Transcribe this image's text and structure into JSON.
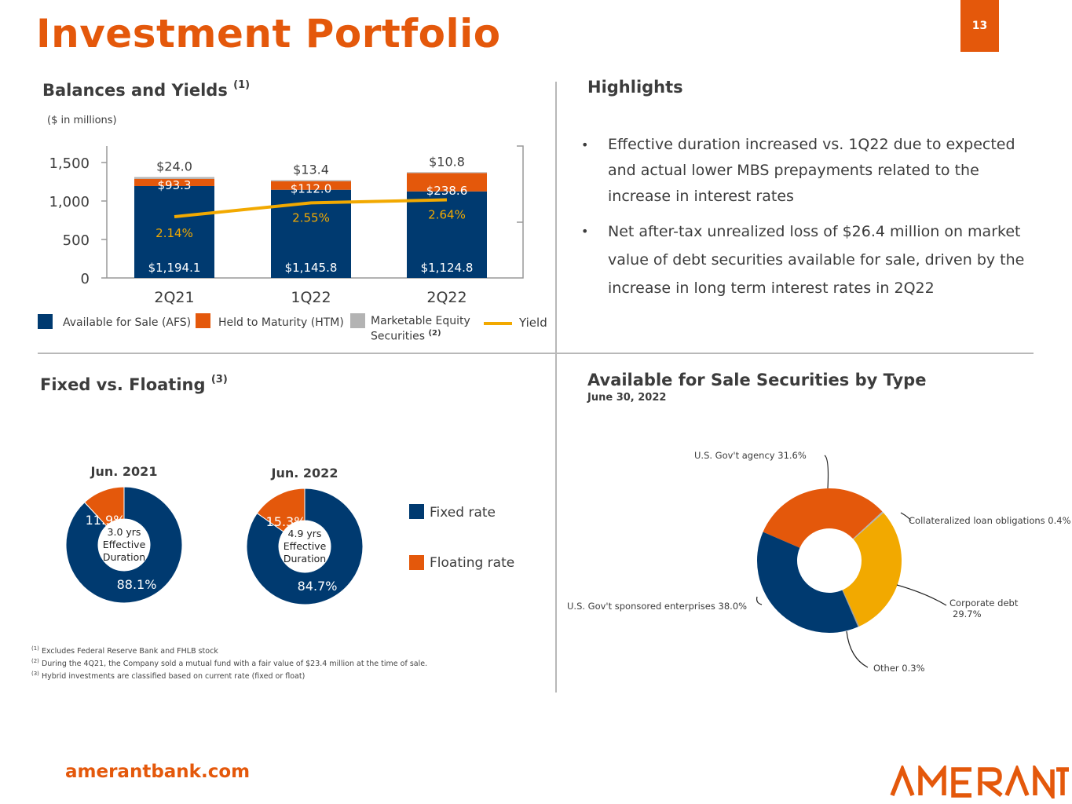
{
  "page": {
    "title": "Investment Portfolio",
    "page_number": "13",
    "footer_url": "amerantbank.com",
    "logo_text": "AMERANT",
    "colors": {
      "brand_orange": "#E4580B",
      "navy": "#003A70",
      "gold": "#F2A900",
      "gray": "#B3B3B3"
    }
  },
  "balances": {
    "title": "Balances and Yields",
    "title_sup": "(1)",
    "units": "($ in millions)",
    "legend": {
      "afs": "Available for Sale (AFS)",
      "htm": "Held to Maturity (HTM)",
      "mes_line1": "Marketable Equity",
      "mes_line2": "Securities",
      "mes_sup": "(2)",
      "yield": "Yield"
    },
    "tick_labels": [
      "0",
      "500",
      "1,000",
      "1,500"
    ]
  },
  "highlights": {
    "title": "Highlights",
    "bullet_symbol": "•",
    "bullets": [
      "Effective duration increased vs. 1Q22 due to expected and actual lower MBS prepayments related to the increase in interest rates",
      "Net after-tax unrealized loss of $26.4 million on market value of debt securities available for sale, driven by the increase in long term interest rates in 2Q22"
    ]
  },
  "fixed_floating": {
    "title": "Fixed vs. Floating",
    "title_sup": "(3)",
    "legend_fixed": "Fixed rate",
    "legend_floating": "Floating rate"
  },
  "afs_by_type": {
    "title": "Available for Sale Securities by Type",
    "subtitle": "June 30, 2022"
  },
  "footnotes": {
    "n1": "Excludes Federal Reserve Bank and FHLB stock",
    "n2": "During the 4Q21, the Company sold a mutual fund with a fair value of $23.4 million at the time of sale.",
    "n3": "Hybrid investments are classified based on current rate (fixed or float)",
    "m1": "(1)",
    "m2": "(2)",
    "m3": "(3)"
  },
  "chart_data": [
    {
      "type": "bar",
      "stacked": true,
      "categories": [
        "2Q21",
        "1Q22",
        "2Q22"
      ],
      "ylim": [
        0,
        1700
      ],
      "yticks": [
        0,
        500,
        1000,
        1500
      ],
      "series": [
        {
          "name": "Available for Sale (AFS)",
          "values": [
            1194.1,
            1145.8,
            1124.8
          ],
          "labels": [
            "$1,194.1",
            "$1,145.8",
            "$1,124.8"
          ],
          "color": "#003A70"
        },
        {
          "name": "Held to Maturity (HTM)",
          "values": [
            93.3,
            112.0,
            238.6
          ],
          "labels": [
            "$93.3",
            "$112.0",
            "$238.6"
          ],
          "color": "#E4580B"
        },
        {
          "name": "Marketable Equity Securities",
          "values": [
            24.0,
            13.4,
            10.8
          ],
          "labels": [
            "$24.0",
            "$13.4",
            "$10.8"
          ],
          "color": "#B3B3B3"
        }
      ],
      "line": {
        "name": "Yield",
        "values": [
          2.14,
          2.55,
          2.64
        ],
        "labels": [
          "2.14%",
          "2.55%",
          "2.64%"
        ],
        "color": "#F2A900"
      }
    },
    {
      "type": "pie",
      "donut": true,
      "title": "Jun. 2021",
      "center_text": [
        "3.0 yrs",
        "Effective",
        "Duration"
      ],
      "slices": [
        {
          "name": "Fixed rate",
          "value": 88.1,
          "label": "88.1%",
          "color": "#003A70"
        },
        {
          "name": "Floating rate",
          "value": 11.9,
          "label": "11.9%",
          "color": "#E4580B"
        }
      ]
    },
    {
      "type": "pie",
      "donut": true,
      "title": "Jun. 2022",
      "center_text": [
        "4.9 yrs",
        "Effective",
        "Duration"
      ],
      "slices": [
        {
          "name": "Fixed rate",
          "value": 84.7,
          "label": "84.7%",
          "color": "#003A70"
        },
        {
          "name": "Floating rate",
          "value": 15.3,
          "label": "15.3%",
          "color": "#E4580B"
        }
      ]
    },
    {
      "type": "pie",
      "donut": true,
      "slices": [
        {
          "name": "U.S. Gov't agency",
          "value": 31.6,
          "label": "U.S. Gov't agency  31.6%",
          "color": "#E4580B"
        },
        {
          "name": "Collateralized loan obligations",
          "value": 0.4,
          "label": "Collateralized loan obligations 0.4%",
          "color": "#B3B3B3"
        },
        {
          "name": "Corporate debt",
          "value": 29.7,
          "label_line1": "Corporate debt",
          "label_line2": "29.7%",
          "color": "#F2A900"
        },
        {
          "name": "Other",
          "value": 0.3,
          "label": "Other 0.3%",
          "color": "#9A9A9A"
        },
        {
          "name": "U.S. Gov't sponsored enterprises",
          "value": 38.0,
          "label": "U.S. Gov't sponsored enterprises  38.0%",
          "color": "#003A70"
        }
      ]
    }
  ]
}
